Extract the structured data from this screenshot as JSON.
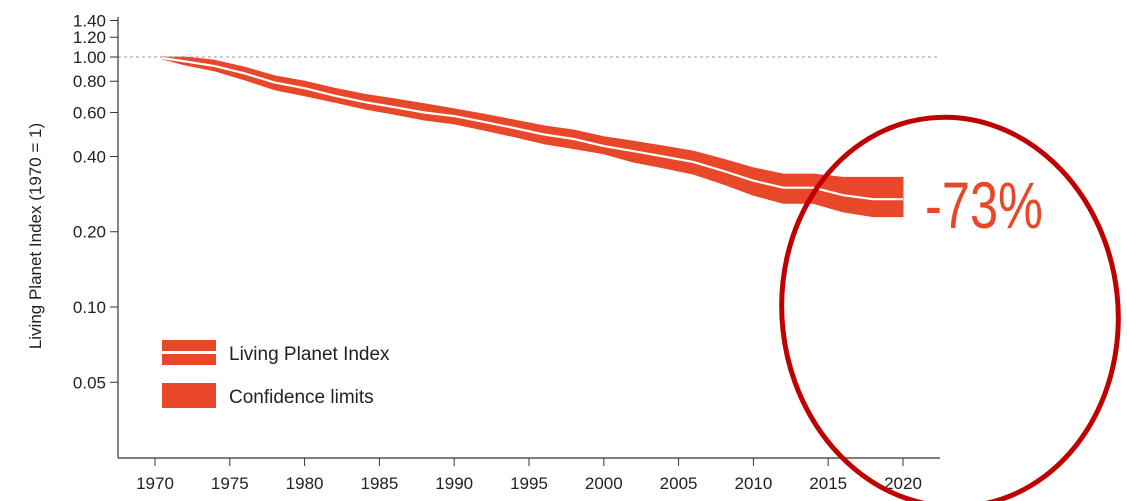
{
  "chart_data": {
    "type": "area",
    "ylabel": "Living Planet Index (1970 = 1)",
    "xlabel": "",
    "scale_y": "log",
    "xlim": [
      1967,
      2023
    ],
    "ylim": [
      0.03,
      1.55
    ],
    "x_ticks": [
      "1970",
      "1975",
      "1980",
      "1985",
      "1990",
      "1995",
      "2000",
      "2005",
      "2010",
      "2015",
      "2020"
    ],
    "y_ticks": [
      "0.05",
      "0.10",
      "0.20",
      "0.40",
      "0.60",
      "0.80",
      "1.00",
      "1.20",
      "1.40"
    ],
    "reference_line": {
      "y": 1.0,
      "style": "dashed"
    },
    "series": [
      {
        "name": "Living Planet Index",
        "x": [
          1970,
          1972,
          1974,
          1976,
          1978,
          1980,
          1982,
          1984,
          1986,
          1988,
          1990,
          1992,
          1994,
          1996,
          1998,
          2000,
          2002,
          2004,
          2006,
          2008,
          2010,
          2012,
          2014,
          2016,
          2018,
          2020
        ],
        "values": [
          1.0,
          0.96,
          0.92,
          0.86,
          0.79,
          0.75,
          0.7,
          0.66,
          0.63,
          0.6,
          0.58,
          0.55,
          0.52,
          0.49,
          0.47,
          0.44,
          0.42,
          0.4,
          0.38,
          0.35,
          0.32,
          0.3,
          0.3,
          0.28,
          0.27,
          0.27
        ]
      },
      {
        "name": "Confidence limits",
        "x": [
          1970,
          1972,
          1974,
          1976,
          1978,
          1980,
          1982,
          1984,
          1986,
          1988,
          1990,
          1992,
          1994,
          1996,
          1998,
          2000,
          2002,
          2004,
          2006,
          2008,
          2010,
          2012,
          2014,
          2016,
          2018,
          2020
        ],
        "upper": [
          1.0,
          1.0,
          0.97,
          0.91,
          0.84,
          0.8,
          0.75,
          0.71,
          0.68,
          0.65,
          0.62,
          0.59,
          0.56,
          0.53,
          0.51,
          0.48,
          0.46,
          0.44,
          0.42,
          0.39,
          0.36,
          0.34,
          0.34,
          0.33,
          0.33,
          0.33
        ],
        "lower": [
          1.0,
          0.93,
          0.88,
          0.81,
          0.74,
          0.7,
          0.66,
          0.62,
          0.59,
          0.56,
          0.54,
          0.51,
          0.48,
          0.45,
          0.43,
          0.41,
          0.38,
          0.36,
          0.34,
          0.31,
          0.28,
          0.26,
          0.26,
          0.24,
          0.23,
          0.23
        ]
      }
    ],
    "legend": {
      "placement": "bottom-left",
      "entries": [
        "Living Planet Index",
        "Confidence limits"
      ]
    },
    "annotation": {
      "text": "-73%",
      "color": "#e8472a"
    },
    "colors": {
      "band": "#e8472a",
      "line": "#ffffff",
      "circle": "#c00000",
      "axis": "#333333",
      "grid_ref": "#999999"
    },
    "grid": false
  }
}
